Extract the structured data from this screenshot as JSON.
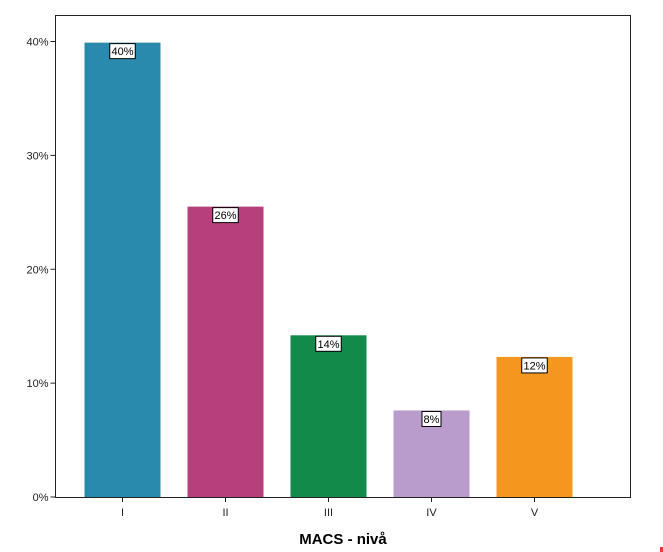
{
  "chart_data": {
    "type": "bar",
    "categories": [
      "I",
      "II",
      "III",
      "IV",
      "V"
    ],
    "values": [
      40,
      26,
      14,
      8,
      12
    ],
    "plotted_values": [
      39.9,
      25.5,
      14.2,
      7.6,
      12.3
    ],
    "data_labels": [
      "40%",
      "26%",
      "14%",
      "8%",
      "12%"
    ],
    "colors": [
      "#2a8aad",
      "#b7407c",
      "#128b4a",
      "#b99bcc",
      "#f5961f"
    ],
    "xlabel": "MACS - nivå",
    "ylabel": "",
    "ylim": [
      0,
      45
    ],
    "yticks": [
      0,
      10,
      20,
      30,
      40
    ],
    "ytick_labels": [
      "0%",
      "10%",
      "20%",
      "30%",
      "40%"
    ],
    "grid": false,
    "legend": "none"
  }
}
